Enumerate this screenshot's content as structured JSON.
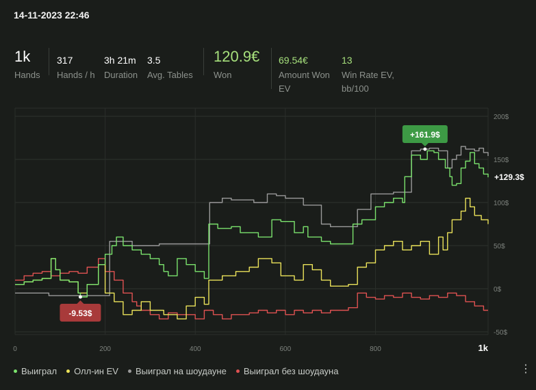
{
  "header": {
    "datetime": "14-11-2023 22:46"
  },
  "stats": {
    "hands": {
      "value": "1k",
      "label": "Hands"
    },
    "hands_per_hour": {
      "value": "317",
      "label": "Hands / h"
    },
    "duration": {
      "value": "3h 21m",
      "label": "Duration"
    },
    "avg_tables": {
      "value": "3.5",
      "label": "Avg. Tables"
    },
    "won": {
      "value": "120.9€",
      "label": "Won"
    },
    "amount_won_ev": {
      "value": "69.54€",
      "label_line1": "Amount Won",
      "label_line2": "EV"
    },
    "win_rate_ev": {
      "value": "13",
      "label_line1": "Win Rate EV,",
      "label_line2": "bb/100"
    }
  },
  "legend": {
    "items": [
      {
        "label": "Выиграл",
        "color": "#7be36d"
      },
      {
        "label": "Олл-ин EV",
        "color": "#ece35a"
      },
      {
        "label": "Выиграл на шоудауне",
        "color": "#9a9a9a"
      },
      {
        "label": "Выиграл без шоудауна",
        "color": "#e05252"
      }
    ]
  },
  "chart_data": {
    "type": "line",
    "xlim": [
      0,
      1050
    ],
    "ylim": [
      -50,
      200
    ],
    "x_ticks": [
      "0",
      "200",
      "400",
      "600",
      "800",
      "1k"
    ],
    "x_tick_values": [
      0,
      200,
      400,
      600,
      800,
      1050
    ],
    "y_ticks": [
      "200$",
      "150$",
      "100$",
      "50$",
      "0$",
      "-50$"
    ],
    "y_tick_values": [
      200,
      150,
      100,
      50,
      0,
      -50
    ],
    "annotations": {
      "max": {
        "label": "+161.9$",
        "x": 910,
        "y": 161.9
      },
      "min": {
        "label": "-9.53$",
        "x": 145,
        "y": -9.53
      },
      "final": {
        "label": "+129.3$",
        "y": 129.3
      }
    },
    "series": [
      {
        "name": "Выиграл",
        "color": "#7be36d",
        "points": [
          [
            0,
            5
          ],
          [
            20,
            8
          ],
          [
            40,
            10
          ],
          [
            60,
            12
          ],
          [
            80,
            35
          ],
          [
            90,
            22
          ],
          [
            100,
            10
          ],
          [
            120,
            8
          ],
          [
            140,
            -5
          ],
          [
            145,
            -9.53
          ],
          [
            160,
            5
          ],
          [
            185,
            28
          ],
          [
            200,
            40
          ],
          [
            215,
            50
          ],
          [
            225,
            60
          ],
          [
            240,
            50
          ],
          [
            260,
            45
          ],
          [
            280,
            40
          ],
          [
            300,
            35
          ],
          [
            320,
            28
          ],
          [
            330,
            20
          ],
          [
            340,
            15
          ],
          [
            360,
            35
          ],
          [
            380,
            28
          ],
          [
            400,
            20
          ],
          [
            420,
            12
          ],
          [
            430,
            75
          ],
          [
            450,
            70
          ],
          [
            480,
            72
          ],
          [
            500,
            65
          ],
          [
            540,
            60
          ],
          [
            570,
            80
          ],
          [
            590,
            78
          ],
          [
            620,
            65
          ],
          [
            640,
            72
          ],
          [
            650,
            60
          ],
          [
            680,
            55
          ],
          [
            700,
            52
          ],
          [
            730,
            52
          ],
          [
            750,
            75
          ],
          [
            770,
            80
          ],
          [
            800,
            95
          ],
          [
            820,
            100
          ],
          [
            840,
            105
          ],
          [
            860,
            100
          ],
          [
            865,
            130
          ],
          [
            880,
            155
          ],
          [
            900,
            150
          ],
          [
            915,
            160
          ],
          [
            930,
            158
          ],
          [
            940,
            150
          ],
          [
            955,
            140
          ],
          [
            965,
            130
          ],
          [
            970,
            120
          ],
          [
            980,
            122
          ],
          [
            990,
            140
          ],
          [
            1000,
            148
          ],
          [
            1010,
            158
          ],
          [
            1020,
            145
          ],
          [
            1030,
            140
          ],
          [
            1040,
            133
          ],
          [
            1050,
            129.3
          ]
        ]
      },
      {
        "name": "Олл-ин EV",
        "color": "#ece35a",
        "points": [
          [
            0,
            5
          ],
          [
            20,
            8
          ],
          [
            40,
            10
          ],
          [
            60,
            12
          ],
          [
            80,
            35
          ],
          [
            90,
            22
          ],
          [
            100,
            10
          ],
          [
            120,
            8
          ],
          [
            140,
            -5
          ],
          [
            160,
            5
          ],
          [
            185,
            28
          ],
          [
            200,
            -5
          ],
          [
            220,
            -15
          ],
          [
            240,
            -30
          ],
          [
            260,
            -25
          ],
          [
            280,
            -15
          ],
          [
            300,
            -25
          ],
          [
            330,
            -30
          ],
          [
            360,
            -35
          ],
          [
            380,
            -20
          ],
          [
            400,
            -10
          ],
          [
            420,
            -18
          ],
          [
            430,
            10
          ],
          [
            460,
            15
          ],
          [
            490,
            20
          ],
          [
            520,
            25
          ],
          [
            540,
            35
          ],
          [
            570,
            30
          ],
          [
            590,
            15
          ],
          [
            620,
            10
          ],
          [
            640,
            28
          ],
          [
            660,
            22
          ],
          [
            680,
            10
          ],
          [
            700,
            3
          ],
          [
            740,
            5
          ],
          [
            760,
            25
          ],
          [
            780,
            30
          ],
          [
            800,
            45
          ],
          [
            820,
            50
          ],
          [
            840,
            55
          ],
          [
            860,
            45
          ],
          [
            880,
            50
          ],
          [
            900,
            55
          ],
          [
            920,
            40
          ],
          [
            940,
            60
          ],
          [
            950,
            45
          ],
          [
            960,
            65
          ],
          [
            970,
            80
          ],
          [
            990,
            90
          ],
          [
            1000,
            105
          ],
          [
            1010,
            95
          ],
          [
            1020,
            85
          ],
          [
            1035,
            80
          ],
          [
            1050,
            75
          ]
        ]
      },
      {
        "name": "Выиграл на шоудауне",
        "color": "#9a9a9a",
        "points": [
          [
            0,
            -5
          ],
          [
            70,
            -5
          ],
          [
            75,
            -8
          ],
          [
            100,
            -8
          ],
          [
            140,
            -8
          ],
          [
            160,
            -8
          ],
          [
            195,
            -8
          ],
          [
            205,
            -8
          ],
          [
            210,
            55
          ],
          [
            240,
            55
          ],
          [
            260,
            50
          ],
          [
            300,
            50
          ],
          [
            320,
            52
          ],
          [
            380,
            52
          ],
          [
            430,
            52
          ],
          [
            432,
            100
          ],
          [
            460,
            105
          ],
          [
            480,
            103
          ],
          [
            500,
            103
          ],
          [
            530,
            100
          ],
          [
            560,
            110
          ],
          [
            580,
            108
          ],
          [
            600,
            105
          ],
          [
            640,
            97
          ],
          [
            680,
            75
          ],
          [
            700,
            72
          ],
          [
            730,
            72
          ],
          [
            760,
            92
          ],
          [
            790,
            110
          ],
          [
            820,
            110
          ],
          [
            840,
            112
          ],
          [
            860,
            112
          ],
          [
            880,
            160
          ],
          [
            900,
            162
          ],
          [
            920,
            163
          ],
          [
            940,
            160
          ],
          [
            960,
            140
          ],
          [
            970,
            150
          ],
          [
            980,
            155
          ],
          [
            990,
            165
          ],
          [
            1000,
            162
          ],
          [
            1020,
            160
          ],
          [
            1030,
            163
          ],
          [
            1040,
            158
          ],
          [
            1050,
            154
          ]
        ]
      },
      {
        "name": "Выиграл без шоудауна",
        "color": "#e05252",
        "points": [
          [
            0,
            10
          ],
          [
            20,
            15
          ],
          [
            40,
            18
          ],
          [
            60,
            20
          ],
          [
            70,
            20
          ],
          [
            80,
            15
          ],
          [
            100,
            18
          ],
          [
            120,
            20
          ],
          [
            140,
            18
          ],
          [
            160,
            25
          ],
          [
            185,
            35
          ],
          [
            200,
            20
          ],
          [
            220,
            10
          ],
          [
            240,
            -5
          ],
          [
            260,
            -15
          ],
          [
            270,
            -20
          ],
          [
            280,
            -25
          ],
          [
            300,
            -30
          ],
          [
            320,
            -35
          ],
          [
            340,
            -28
          ],
          [
            360,
            -30
          ],
          [
            380,
            -30
          ],
          [
            400,
            -35
          ],
          [
            420,
            -25
          ],
          [
            440,
            -30
          ],
          [
            460,
            -35
          ],
          [
            480,
            -30
          ],
          [
            520,
            -28
          ],
          [
            540,
            -25
          ],
          [
            560,
            -28
          ],
          [
            580,
            -25
          ],
          [
            600,
            -30
          ],
          [
            620,
            -25
          ],
          [
            640,
            -28
          ],
          [
            660,
            -25
          ],
          [
            680,
            -28
          ],
          [
            700,
            -25
          ],
          [
            740,
            -22
          ],
          [
            760,
            -5
          ],
          [
            780,
            -10
          ],
          [
            800,
            -12
          ],
          [
            820,
            -8
          ],
          [
            840,
            -10
          ],
          [
            860,
            -5
          ],
          [
            880,
            -10
          ],
          [
            900,
            -12
          ],
          [
            920,
            -8
          ],
          [
            940,
            -10
          ],
          [
            960,
            -5
          ],
          [
            980,
            -8
          ],
          [
            1000,
            -15
          ],
          [
            1020,
            -20
          ],
          [
            1040,
            -25
          ],
          [
            1050,
            -25
          ]
        ]
      }
    ]
  }
}
